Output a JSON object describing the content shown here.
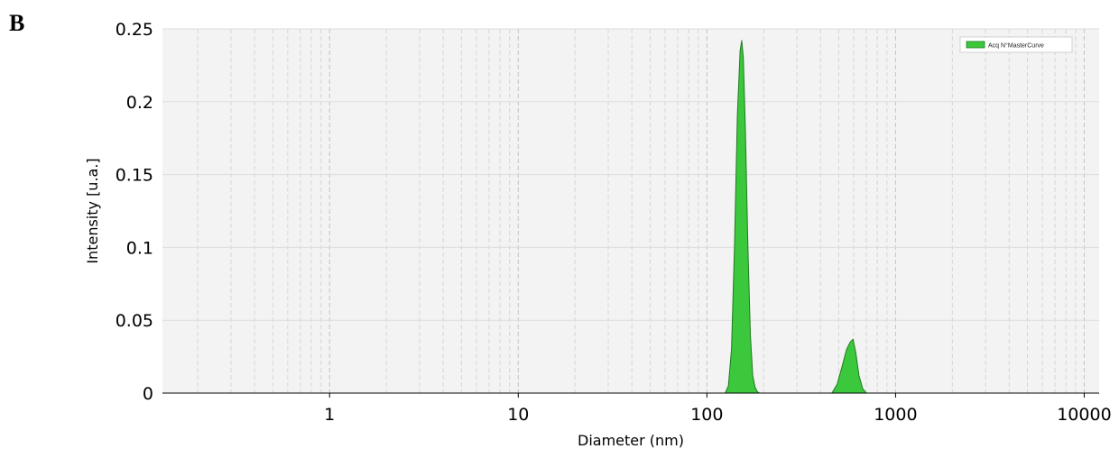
{
  "panel_label": "B",
  "chart_data": {
    "type": "area",
    "xlabel": "Diameter (nm)",
    "ylabel": "Intensity [u.a.]",
    "xscale": "log",
    "xlim": [
      0.13,
      12000
    ],
    "ylim": [
      0,
      0.25
    ],
    "grid": true,
    "legend_position": "top-right",
    "x_ticks": [
      1,
      10,
      100,
      1000,
      10000
    ],
    "x_tick_labels": [
      "1",
      "10",
      "100",
      "1000",
      "10000"
    ],
    "y_ticks": [
      0,
      0.05,
      0.1,
      0.15,
      0.2,
      0.25
    ],
    "y_tick_labels": [
      "0",
      "0.05",
      "0.1",
      "0.15",
      "0.2",
      "0.25"
    ],
    "series": [
      {
        "name": "Acq N°MasterCurve",
        "color": "#3cc83c",
        "x": [
          125,
          130,
          135,
          140,
          145,
          150,
          153,
          156,
          160,
          165,
          170,
          175,
          180,
          185,
          190,
          460,
          490,
          520,
          550,
          575,
          595,
          615,
          640,
          670,
          700
        ],
        "y": [
          0,
          0.005,
          0.03,
          0.1,
          0.19,
          0.235,
          0.242,
          0.23,
          0.18,
          0.1,
          0.04,
          0.012,
          0.004,
          0.001,
          0,
          0,
          0.006,
          0.018,
          0.03,
          0.035,
          0.037,
          0.028,
          0.012,
          0.003,
          0
        ]
      }
    ]
  }
}
